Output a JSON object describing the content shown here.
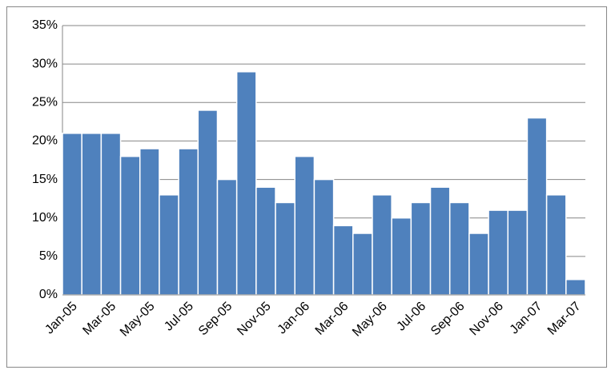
{
  "chart_data": {
    "type": "bar",
    "categories": [
      "Jan-05",
      null,
      "Mar-05",
      null,
      "May-05",
      null,
      "Jul-05",
      null,
      "Sep-05",
      null,
      "Nov-05",
      null,
      "Jan-06",
      null,
      "Mar-06",
      null,
      "May-06",
      null,
      "Jul-06",
      null,
      "Sep-06",
      null,
      "Nov-06",
      null,
      "Jan-07",
      null,
      "Mar-07"
    ],
    "values": [
      21,
      21,
      21,
      18,
      19,
      13,
      19,
      24,
      15,
      29,
      14,
      12,
      18,
      15,
      9,
      8,
      13,
      10,
      12,
      14,
      12,
      8,
      11,
      11,
      23,
      13,
      2
    ],
    "color": "#4f81bd",
    "ylim": [
      0,
      35
    ],
    "yticks": [
      {
        "value": 0,
        "label": "0%"
      },
      {
        "value": 5,
        "label": "5%"
      },
      {
        "value": 10,
        "label": "10%"
      },
      {
        "value": 15,
        "label": "15%"
      },
      {
        "value": 20,
        "label": "20%"
      },
      {
        "value": 25,
        "label": "25%"
      },
      {
        "value": 30,
        "label": "30%"
      },
      {
        "value": 35,
        "label": "35%"
      }
    ],
    "grid": true
  }
}
